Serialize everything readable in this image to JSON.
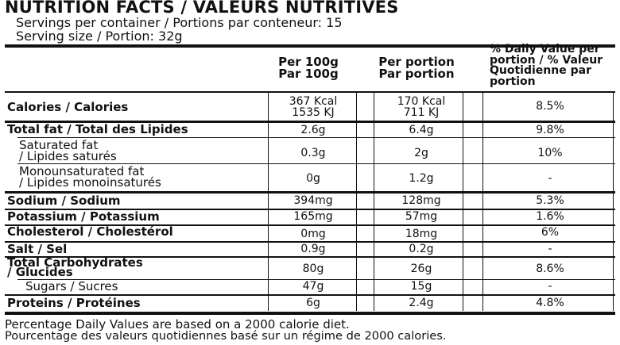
{
  "header": {
    "title": "NUTRITION FACTS / VALEURS NUTRITIVES",
    "servings": "Servings per container / Portions par conteneur: 15",
    "serving_size": "Serving size / Portion: 32g"
  },
  "columns": {
    "per100_line1": "Per 100g",
    "per100_line2": "Par 100g",
    "perportion_line1": "Per portion",
    "perportion_line2": "Par portion",
    "dv_line1": "% Daily Value per",
    "dv_line2": "portion / % Valeur",
    "dv_line3": "Quotidienne par",
    "dv_line4": "portion"
  },
  "rows": {
    "calories": {
      "label": "Calories / Calories",
      "per100_a": "367 Kcal",
      "per100_b": "1535 KJ",
      "portion_a": "170 Kcal",
      "portion_b": "711 KJ",
      "dv": "8.5%"
    },
    "total_fat": {
      "label": "Total fat / Total des Lipides",
      "per100": "2.6g",
      "portion": "6.4g",
      "dv": "9.8%"
    },
    "saturated": {
      "label_a": "Saturated fat",
      "label_b": "/ Lipides saturés",
      "per100": "0.3g",
      "portion": "2g",
      "dv": "10%"
    },
    "monounsat": {
      "label_a": "Monounsaturated fat",
      "label_b": "/ Lipides monoinsaturés",
      "per100": "0g",
      "portion": "1.2g",
      "dv": "-"
    },
    "sodium": {
      "label": "Sodium / Sodium",
      "per100": "394mg",
      "portion": "128mg",
      "dv": "5.3%"
    },
    "potassium": {
      "label": "Potassium / Potassium",
      "per100": "165mg",
      "portion": "57mg",
      "dv": "1.6%"
    },
    "cholesterol": {
      "label": "Cholesterol / Cholestérol",
      "per100": "0mg",
      "portion": "18mg",
      "dv": "6%"
    },
    "salt": {
      "label": "Salt / Sel",
      "per100": "0.9g",
      "portion": "0.2g",
      "dv": "-"
    },
    "carbs": {
      "label_a": "Total Carbohydrates",
      "label_b": "/ Glucides",
      "per100": "80g",
      "portion": "26g",
      "dv": "8.6%"
    },
    "sugars": {
      "label": "Sugars / Sucres",
      "per100": "47g",
      "portion": "15g",
      "dv": "-"
    },
    "proteins": {
      "label": "Proteins / Protéines",
      "per100": "6g",
      "portion": "2.4g",
      "dv": "4.8%"
    }
  },
  "footer": {
    "line1": "Percentage Daily Values are based on a 2000 calorie diet.",
    "line2": "Pourcentage des valeurs quotidiennes basé sur un régime de 2000 calories."
  }
}
